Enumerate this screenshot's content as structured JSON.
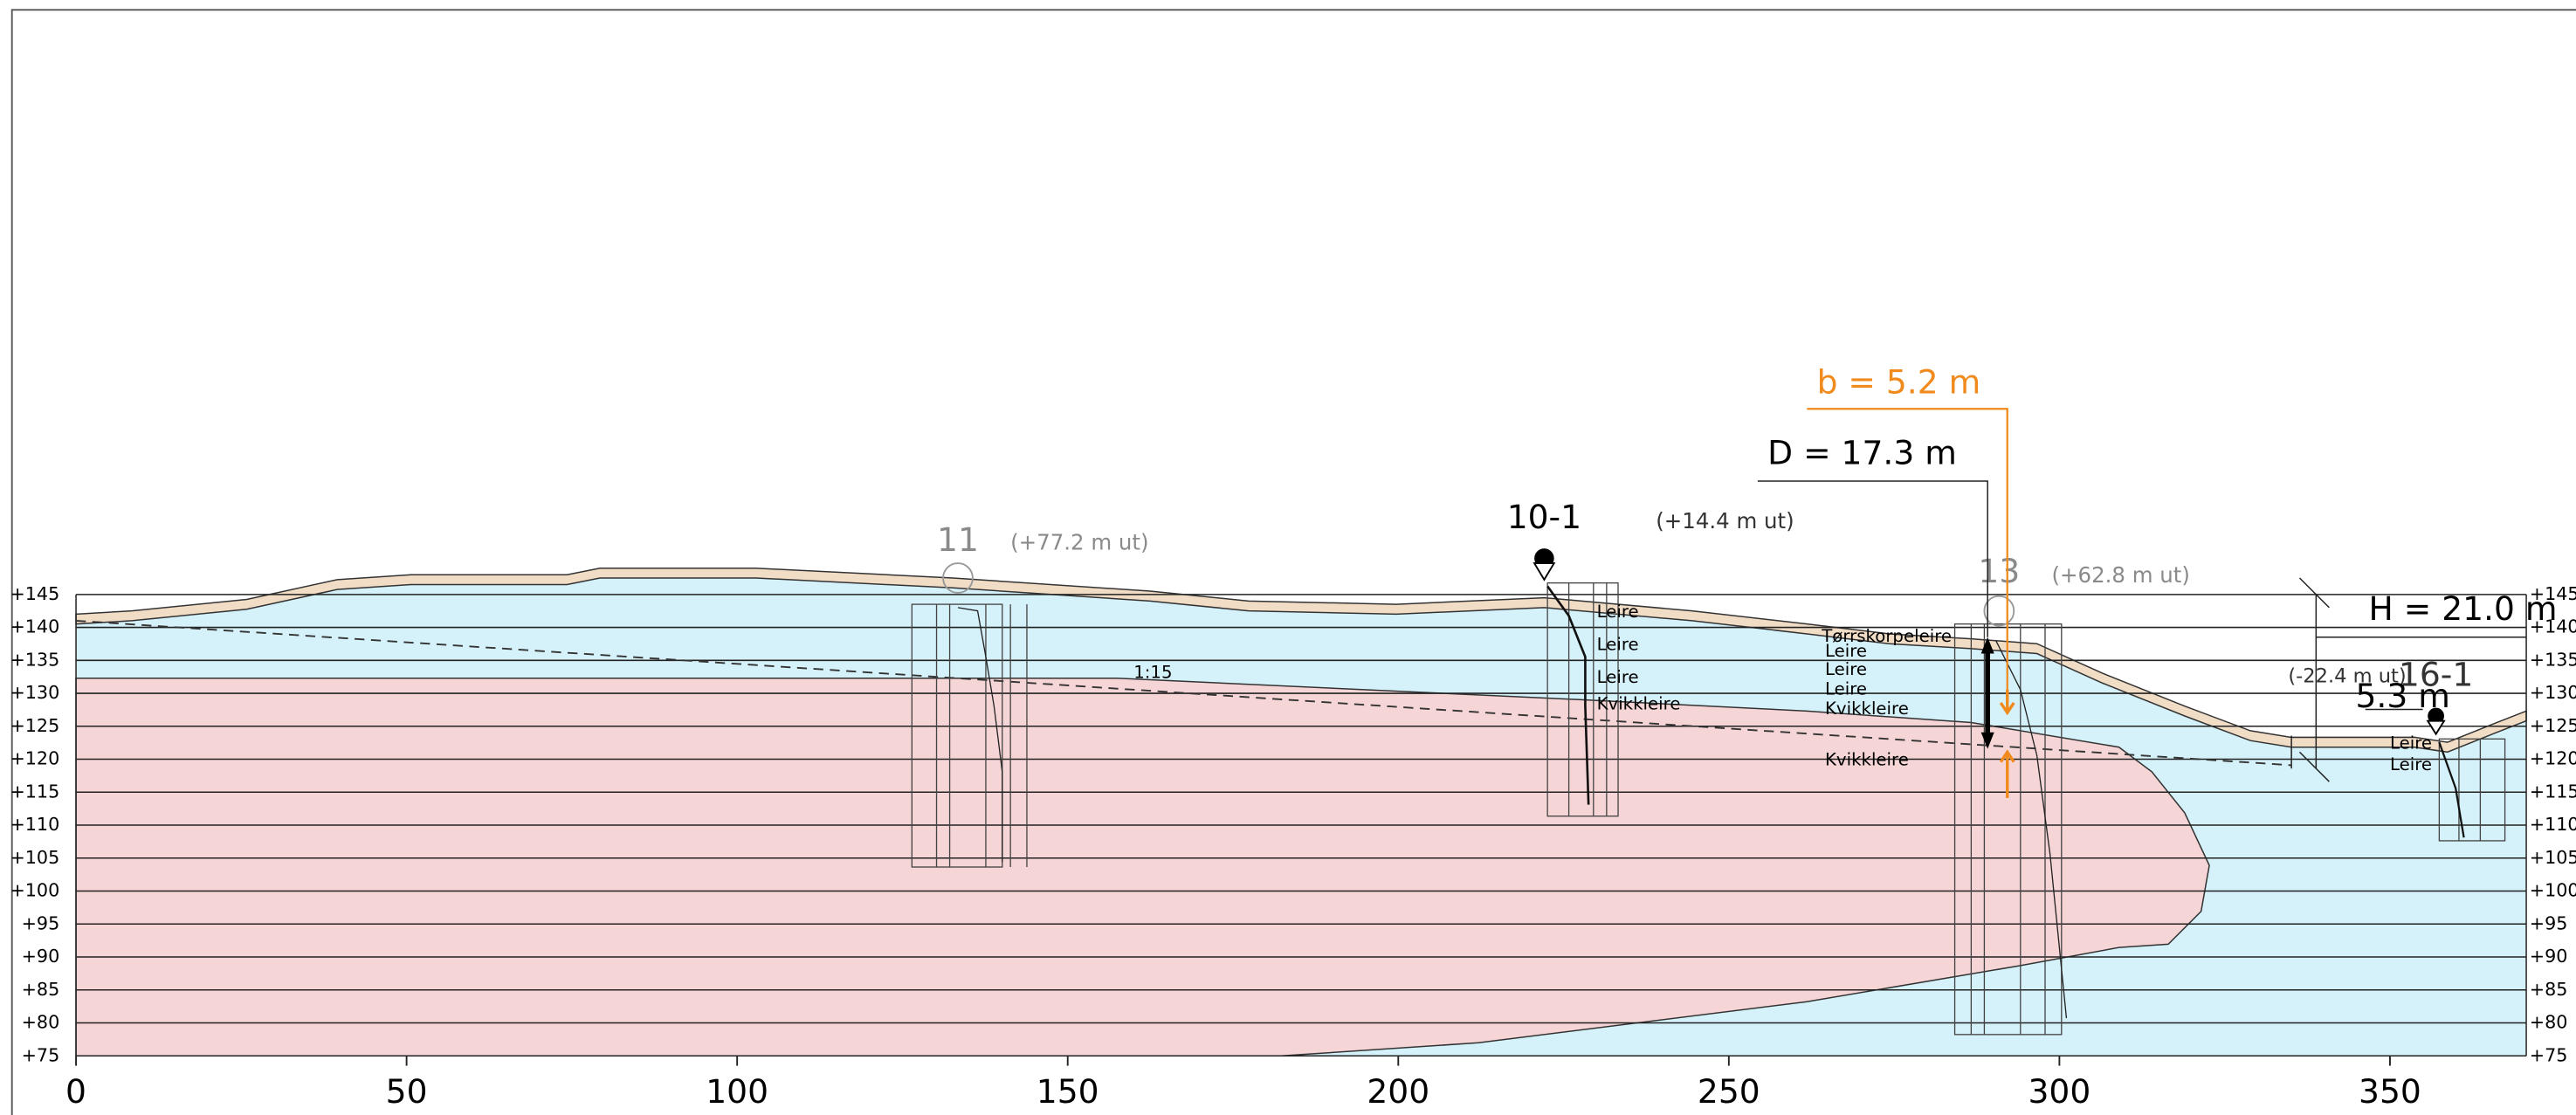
{
  "axes": {
    "x_ticks": [
      0,
      50,
      100,
      150,
      200,
      250,
      300,
      350
    ],
    "elevation_ticks": [
      {
        "value": 145,
        "label": "+145"
      },
      {
        "value": 140,
        "label": "+140"
      },
      {
        "value": 135,
        "label": "+135"
      },
      {
        "value": 130,
        "label": "+130"
      },
      {
        "value": 125,
        "label": "+125"
      },
      {
        "value": 120,
        "label": "+120"
      },
      {
        "value": 115,
        "label": "+115"
      },
      {
        "value": 110,
        "label": "+110"
      },
      {
        "value": 105,
        "label": "+105"
      },
      {
        "value": 100,
        "label": "+100"
      },
      {
        "value": 95,
        "label": "+95"
      },
      {
        "value": 90,
        "label": "+90"
      },
      {
        "value": 85,
        "label": "+85"
      },
      {
        "value": 80,
        "label": "+80"
      },
      {
        "value": 75,
        "label": "+75"
      }
    ]
  },
  "boreholes": [
    {
      "id": "11",
      "offset": "(+77.2 m ut)"
    },
    {
      "id": "10-1",
      "offset": "(+14.4 m ut)"
    },
    {
      "id": "13",
      "offset": "(+62.8 m ut)"
    },
    {
      "id": "16-1",
      "offset": "(-22.4 m ut)"
    }
  ],
  "annotations": {
    "slope": "1:15",
    "H": "H = 21.0 m",
    "D": "D = 17.3 m",
    "b": "b = 5.2 m",
    "depth": "5.3 m"
  },
  "layers": {
    "bh10_1": [
      "Leire",
      "Leire",
      "Leire",
      "Kvikkleire"
    ],
    "bh13": [
      "Tørrskorpeleire",
      "Leire",
      "Leire",
      "Leire",
      "Kvikkleire",
      "Kvikkleire"
    ],
    "bh16_1": [
      "Leire",
      "Leire"
    ]
  }
}
